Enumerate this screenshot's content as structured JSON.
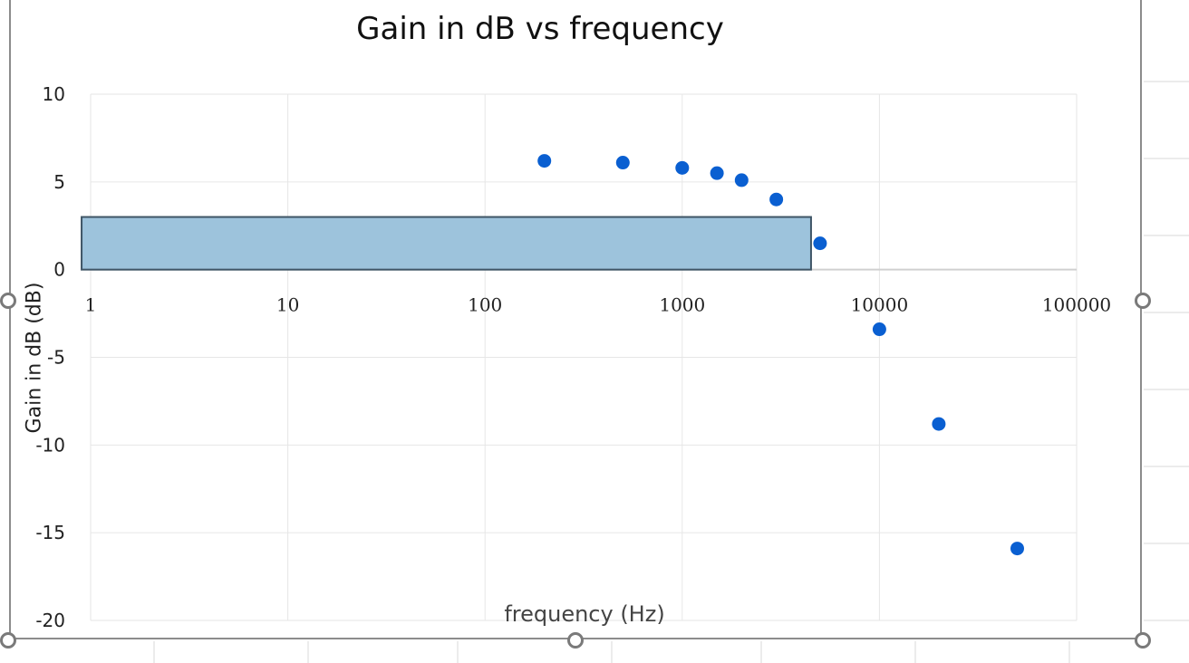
{
  "chart_data": {
    "type": "scatter",
    "title": "Gain in dB vs frequency",
    "xlabel": "frequency (Hz)",
    "ylabel": "Gain in dB (dB)",
    "x_scale": "log",
    "xlim": [
      1,
      100000
    ],
    "ylim": [
      -20,
      10
    ],
    "x_ticks": [
      "1",
      "10",
      "100",
      "1000",
      "10000",
      "100000"
    ],
    "y_ticks": [
      "10",
      "5",
      "0",
      "-5",
      "-10",
      "-15",
      "-20"
    ],
    "grid": true,
    "marker_color": "#0a5fd1",
    "points": [
      {
        "x": 200,
        "y": 6.2
      },
      {
        "x": 500,
        "y": 6.1
      },
      {
        "x": 1000,
        "y": 5.8
      },
      {
        "x": 1500,
        "y": 5.5
      },
      {
        "x": 2000,
        "y": 5.1
      },
      {
        "x": 3000,
        "y": 4.0
      },
      {
        "x": 5000,
        "y": 1.5
      },
      {
        "x": 10000,
        "y": -3.4
      },
      {
        "x": 20000,
        "y": -8.8
      },
      {
        "x": 50000,
        "y": -15.9
      }
    ],
    "overlay_box": {
      "x_from": 0.9,
      "x_to": 4500,
      "y_from": 0,
      "y_to": 3,
      "fill": "#9dc3dc",
      "stroke": "#3f5566"
    }
  }
}
